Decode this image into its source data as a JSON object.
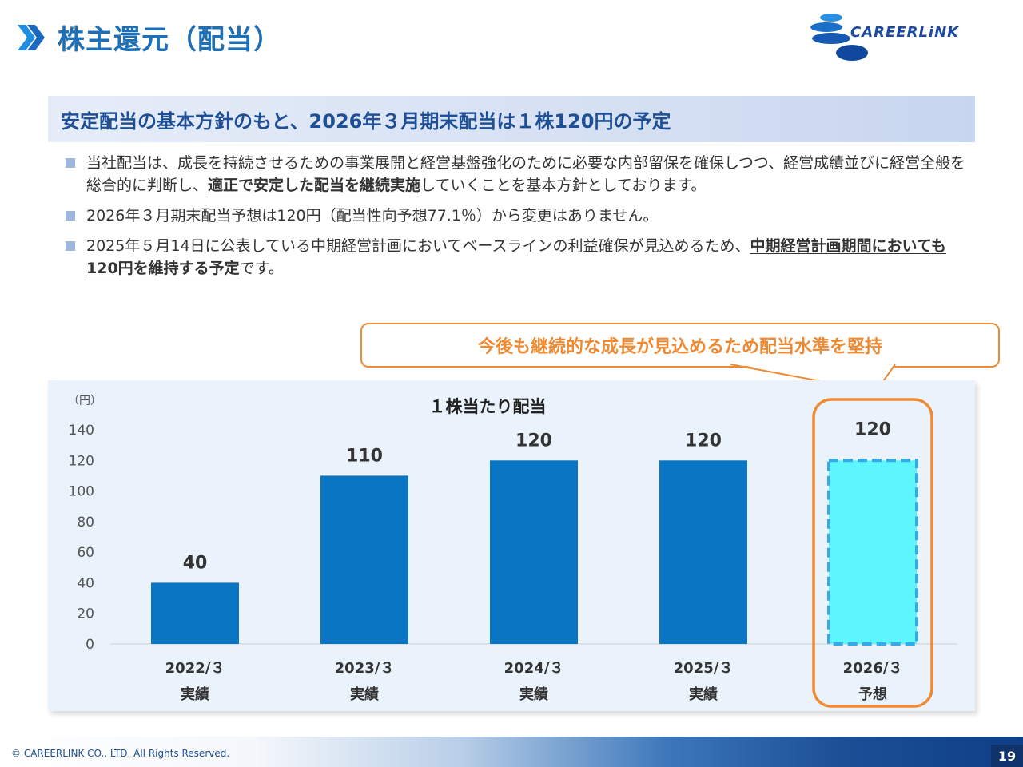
{
  "page": {
    "title": "株主還元（配当）",
    "headline": "安定配当の基本方針のもと、2026年３月期末配当は１株120円の予定",
    "logo_text": "CAREERLiNK",
    "callout": "今後も継続的な成長が見込めるため配当水準を堅持",
    "copyright": "© CAREERLINK CO., LTD. All Rights Reserved.",
    "page_number": "19"
  },
  "bullets": [
    {
      "text_before": "当社配当は、成長を持続させるための事業展開と経営基盤強化のために必要な内部留保を確保しつつ、経営成績並びに経営全般を総合的に判断し、",
      "emphasis": "適正で安定した配当を継続実施",
      "text_after": "していくことを基本方針としております。"
    },
    {
      "text_before": "2026年３月期末配当予想は120円（配当性向予想77.1％）から変更はありません。",
      "emphasis": "",
      "text_after": ""
    },
    {
      "text_before": "2025年５月14日に公表している中期経営計画においてベースラインの利益確保が見込めるため、",
      "emphasis": "中期経営計画期間においても120円を維持する予定",
      "text_after": "です。"
    }
  ],
  "chart_data": {
    "type": "bar",
    "title": "１株当たり配当",
    "y_unit": "（円）",
    "ylim": [
      0,
      140
    ],
    "y_ticks": [
      0,
      20,
      40,
      60,
      80,
      100,
      120,
      140
    ],
    "grid": false,
    "categories": [
      "2022/３",
      "2023/３",
      "2024/３",
      "2025/３",
      "2026/３"
    ],
    "sublabels": [
      "実績",
      "実績",
      "実績",
      "実績",
      "予想"
    ],
    "values": [
      40,
      110,
      120,
      120,
      120
    ],
    "data_labels": [
      "40",
      "110",
      "120",
      "120",
      "120"
    ],
    "forecast_index": 4,
    "colors": {
      "actual": "#0a75c2",
      "forecast_fill": "#5df6ff",
      "forecast_border": "#37a9e6",
      "highlight": "#ee8a33"
    }
  }
}
